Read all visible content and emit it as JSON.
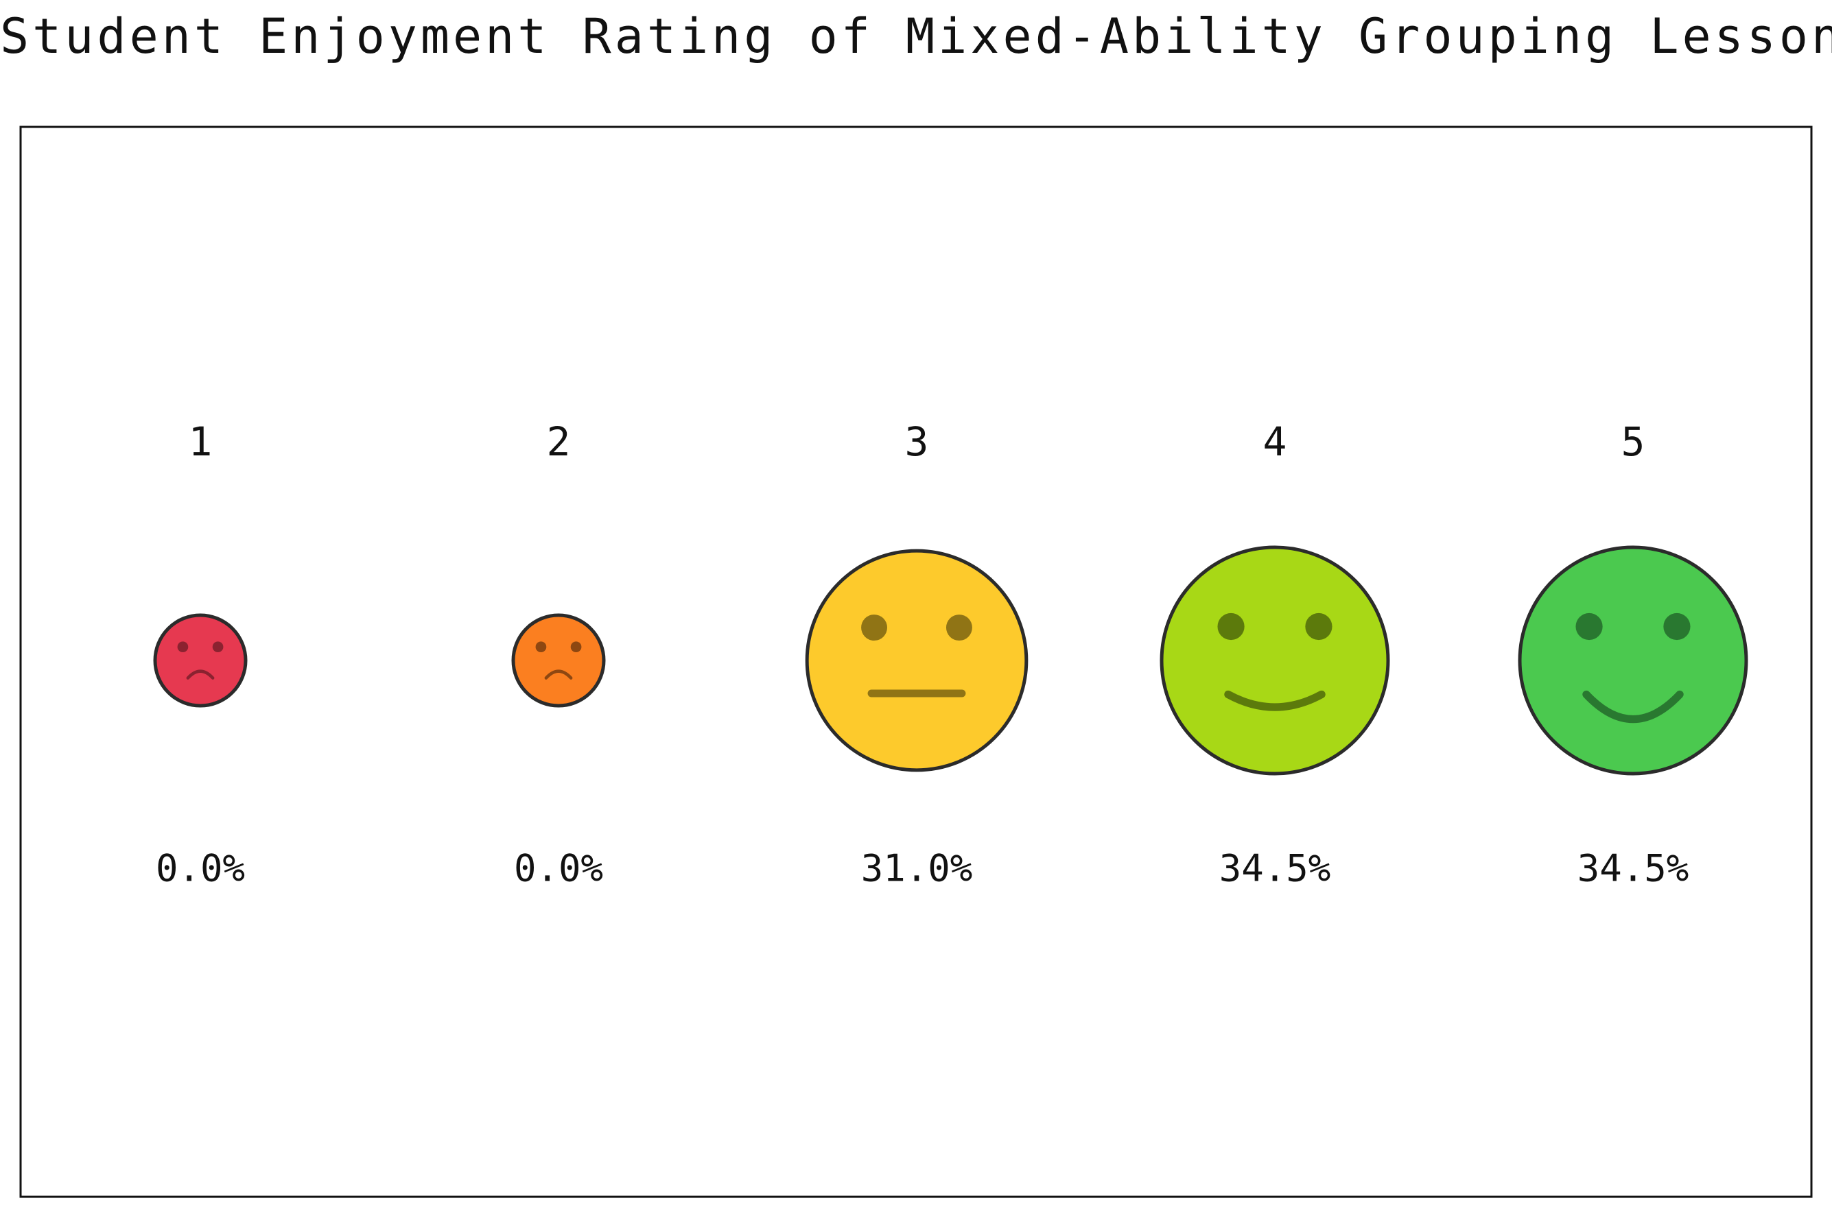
{
  "chart_data": {
    "type": "pictorial",
    "title": "Student Enjoyment Rating of Mixed-Ability Grouping Lesson",
    "categories": [
      "1",
      "2",
      "3",
      "4",
      "5"
    ],
    "values": [
      0.0,
      0.0,
      31.0,
      34.5,
      34.5
    ],
    "value_labels": [
      "0.0%",
      "0.0%",
      "31.0%",
      "34.5%",
      "34.5%"
    ],
    "unit": "%",
    "faces": [
      "very-sad",
      "sad",
      "neutral",
      "happy",
      "very-happy"
    ],
    "colors": [
      "#e63950",
      "#fb7f20",
      "#fdca2c",
      "#a8d816",
      "#4bc94f"
    ],
    "feature_colors": [
      "#7a1e2a",
      "#7a3d0f",
      "#7d6512",
      "#4f6a0a",
      "#236a2a"
    ],
    "outline_color": "#2b2b2b",
    "grid": false,
    "legend": "none"
  }
}
